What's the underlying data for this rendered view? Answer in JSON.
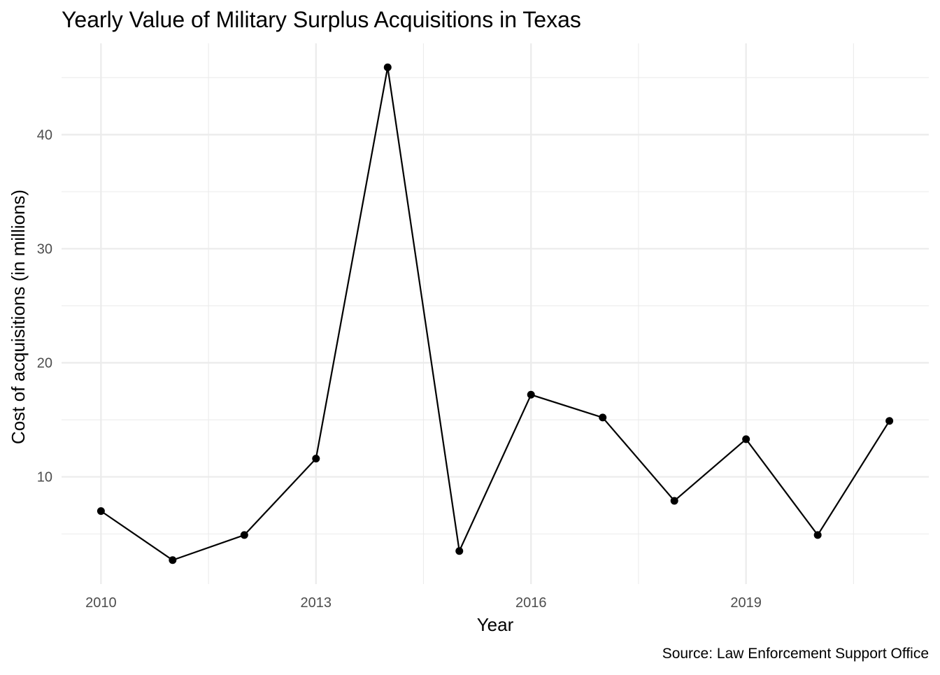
{
  "chart_data": {
    "type": "line",
    "title": "Yearly Value of Military Surplus Acquisitions in Texas",
    "xlabel": "Year",
    "ylabel": "Cost of acquisitions (in millions)",
    "caption": "Source: Law Enforcement Support Office",
    "x": [
      2010,
      2011,
      2012,
      2013,
      2014,
      2015,
      2016,
      2017,
      2018,
      2019,
      2020,
      2021
    ],
    "series": [
      {
        "values": [
          7.0,
          2.7,
          4.9,
          11.6,
          45.9,
          3.5,
          17.2,
          15.2,
          7.9,
          13.3,
          4.9,
          14.9
        ]
      }
    ],
    "xlim": [
      2009.45,
      2021.55
    ],
    "ylim": [
      0.6,
      48.0
    ],
    "x_ticks": [
      2010,
      2013,
      2016,
      2019
    ],
    "x_tick_labels": [
      "2010",
      "2013",
      "2016",
      "2019"
    ],
    "x_minor_ticks": [
      2011.5,
      2014.5,
      2017.5,
      2020.5
    ],
    "y_ticks": [
      10,
      20,
      30,
      40
    ],
    "y_tick_labels": [
      "10",
      "20",
      "30",
      "40"
    ],
    "y_minor_ticks": [
      5,
      15,
      25,
      35,
      45
    ],
    "grid": true,
    "legend": "none",
    "colors": {
      "line": "#000000",
      "grid": "#ebebeb",
      "tick_text": "#4d4d4d",
      "background": "#ffffff"
    }
  }
}
